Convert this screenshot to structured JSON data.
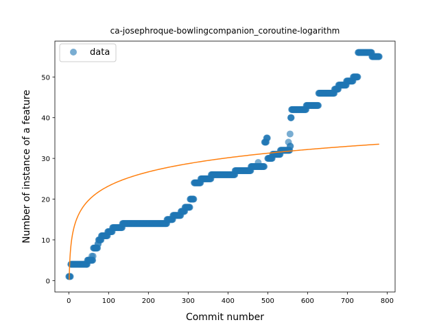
{
  "chart_data": {
    "type": "scatter",
    "title": "ca-josephroque-bowlingcompanion_coroutine-logarithm",
    "xlabel": "Commit number",
    "ylabel": "Number of instance of a feature",
    "xlim": [
      -35,
      820
    ],
    "ylim": [
      -2.8,
      58.8
    ],
    "xticks": [
      0,
      100,
      200,
      300,
      400,
      500,
      600,
      700,
      800
    ],
    "yticks": [
      0,
      10,
      20,
      30,
      40,
      50
    ],
    "grid": false,
    "legend": {
      "position": "top-left",
      "entries": [
        "data"
      ]
    },
    "colors": {
      "data": "#1f77b4",
      "fit": "#ff7f0e"
    },
    "series": [
      {
        "name": "data",
        "kind": "scatter",
        "steps": [
          [
            0,
            1
          ],
          [
            4,
            1
          ],
          [
            5,
            4
          ],
          [
            45,
            4
          ],
          [
            47,
            5
          ],
          [
            60,
            5
          ],
          [
            61,
            6
          ],
          [
            62,
            8
          ],
          [
            72,
            8
          ],
          [
            73,
            9
          ],
          [
            75,
            10
          ],
          [
            80,
            10
          ],
          [
            82,
            11
          ],
          [
            95,
            11
          ],
          [
            98,
            12
          ],
          [
            108,
            12
          ],
          [
            110,
            13
          ],
          [
            133,
            13
          ],
          [
            135,
            14
          ],
          [
            245,
            14
          ],
          [
            247,
            15
          ],
          [
            260,
            15
          ],
          [
            262,
            16
          ],
          [
            280,
            16
          ],
          [
            282,
            17
          ],
          [
            290,
            17
          ],
          [
            292,
            18
          ],
          [
            300,
            18
          ],
          [
            305,
            20
          ],
          [
            312,
            20
          ],
          [
            315,
            24
          ],
          [
            330,
            24
          ],
          [
            332,
            25
          ],
          [
            355,
            25
          ],
          [
            358,
            26
          ],
          [
            415,
            26
          ],
          [
            418,
            27
          ],
          [
            455,
            27
          ],
          [
            458,
            28
          ],
          [
            490,
            28
          ],
          [
            492,
            34
          ],
          [
            497,
            35
          ],
          [
            500,
            30
          ],
          [
            510,
            30
          ],
          [
            512,
            31
          ],
          [
            530,
            31
          ],
          [
            532,
            32
          ],
          [
            555,
            32
          ],
          [
            556,
            33
          ],
          [
            558,
            40
          ],
          [
            560,
            42
          ],
          [
            595,
            42
          ],
          [
            597,
            43
          ],
          [
            625,
            43
          ],
          [
            628,
            46
          ],
          [
            665,
            46
          ],
          [
            668,
            47
          ],
          [
            675,
            47
          ],
          [
            678,
            48
          ],
          [
            695,
            48
          ],
          [
            698,
            49
          ],
          [
            712,
            49
          ],
          [
            715,
            50
          ],
          [
            725,
            50
          ],
          [
            727,
            56
          ],
          [
            760,
            56
          ],
          [
            762,
            55
          ],
          [
            780,
            55
          ]
        ],
        "outliers": [
          [
            58,
            6
          ],
          [
            476,
            29
          ],
          [
            552,
            34
          ],
          [
            556,
            36
          ],
          [
            558,
            40
          ]
        ]
      },
      {
        "name": "",
        "kind": "line",
        "fit": {
          "form": "a + b*ln(x)",
          "a": 0.2,
          "b": 5.0,
          "x_range": [
            1,
            780
          ]
        }
      }
    ]
  }
}
